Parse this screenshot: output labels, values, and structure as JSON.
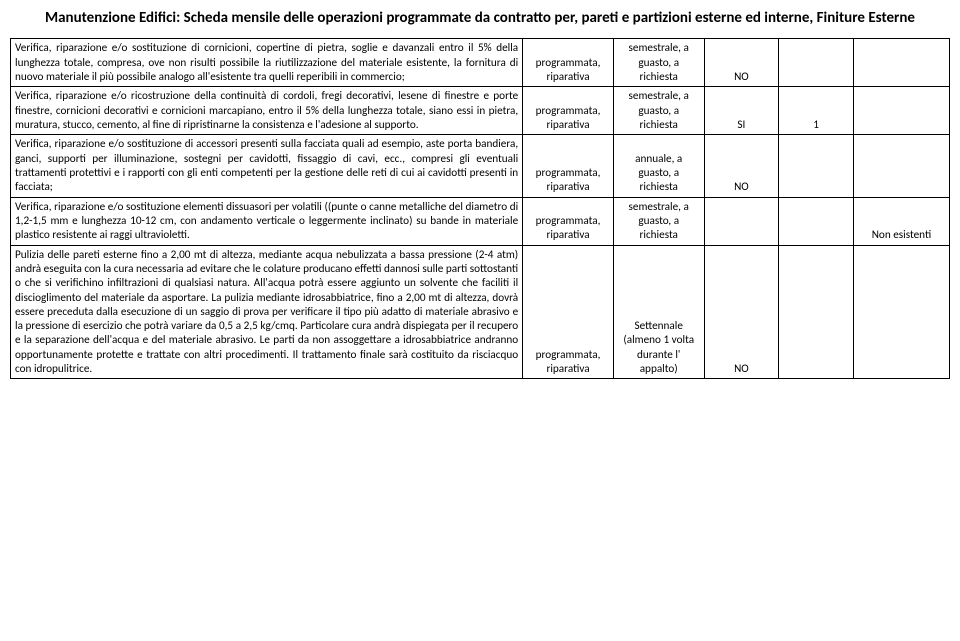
{
  "title": "Manutenzione Edifici: Scheda mensile delle operazioni programmate da contratto per, pareti e partizioni esterne ed interne, Finiture Esterne",
  "rows": [
    {
      "desc": "Verifica, riparazione e/o sostituzione di cornicioni, copertine di pietra, soglie e davanzali entro il 5% della lunghezza totale, compresa, ove non risulti possibile la riutilizzazione del materiale esistente, la fornitura di nuovo materiale il più possibile analogo all'esistente tra quelli reperibili in commercio;",
      "c2": "programmata, riparativa",
      "c3": "semestrale, a guasto, a richiesta",
      "c4": "NO",
      "c5": "",
      "c6": ""
    },
    {
      "desc": "Verifica, riparazione e/o ricostruzione della continuità di cordoli, fregi decorativi, lesene di finestre e porte finestre, cornicioni decorativi e cornicioni marcapiano, entro il 5% della lunghezza totale, siano essi in pietra, muratura, stucco, cemento, al fine di ripristinarne la consistenza e l'adesione al supporto.",
      "c2": "programmata, riparativa",
      "c3": "semestrale, a guasto, a richiesta",
      "c4": "SI",
      "c5": "1",
      "c6": ""
    },
    {
      "desc": "Verifica, riparazione e/o sostituzione di accessori presenti sulla facciata quali ad esempio, aste porta bandiera, ganci, supporti per illuminazione, sostegni per cavidotti, fissaggio di cavi, ecc., compresi gli eventuali trattamenti protettivi e i rapporti con gli enti competenti per la gestione delle reti di cui ai cavidotti presenti in facciata;",
      "c2": "programmata, riparativa",
      "c3": "annuale, a guasto, a richiesta",
      "c4": "NO",
      "c5": "",
      "c6": ""
    },
    {
      "desc": "Verifica, riparazione e/o sostituzione elementi dissuasori per volatili ((punte o canne metalliche del diametro di 1,2-1,5 mm e lunghezza 10-12 cm, con andamento verticale o leggermente inclinato) su bande in materiale plastico resistente ai raggi ultravioletti.",
      "c2": "programmata, riparativa",
      "c3": "semestrale, a guasto, a richiesta",
      "c4": "",
      "c5": "",
      "c6": "Non esistenti"
    },
    {
      "desc": "Pulizia delle pareti esterne fino a 2,00 mt di altezza, mediante acqua nebulizzata a bassa pressione (2-4 atm) andrà eseguita con la cura necessaria ad evitare che le colature producano effetti dannosi  sulle parti sottostanti o che si verifichino infiltrazioni di qualsiasi natura. All'acqua potrà essere aggiunto un solvente che faciliti il discioglimento del materiale da asportare. La pulizia mediante idrosabbiatrice, fino a 2,00 mt di altezza, dovrà essere preceduta dalla esecuzione  di un saggio di prova per verificare il tipo più adatto di materiale abrasivo e la pressione di esercizio che potrà variare da 0,5 a 2,5 kg/cmq. Particolare cura andrà dispiegata per il recupero e la separazione dell'acqua e del  materiale abrasivo. Le parti da non assoggettare a idrosabbiatrice andranno opportunamente protette e trattate con altri procedimenti. Il trattamento finale sarà costituito da risciacquo con idropulitrice.",
      "c2": "programmata, riparativa",
      "c3": "Settennale (almeno 1 volta durante l' appalto)",
      "c4": "NO",
      "c5": "",
      "c6": ""
    }
  ]
}
